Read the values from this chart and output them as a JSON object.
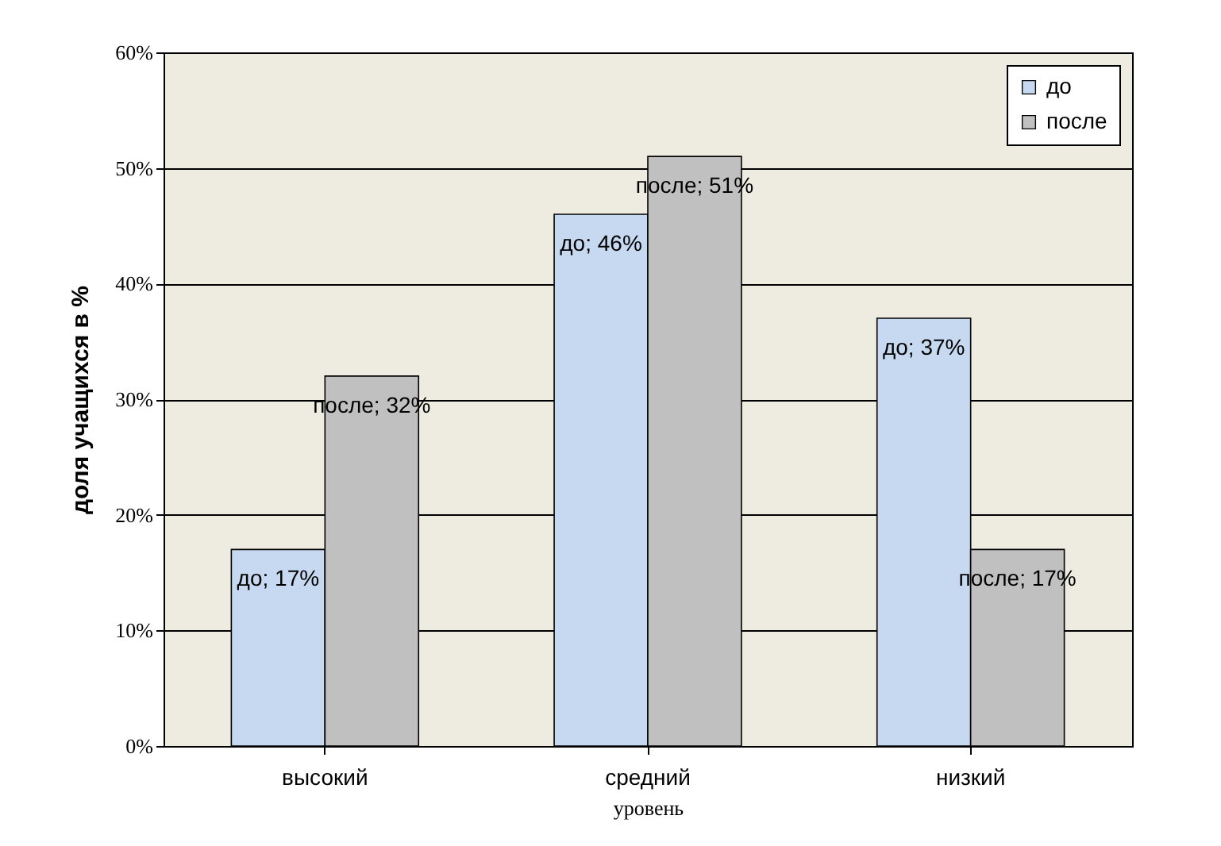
{
  "chart_data": {
    "type": "bar",
    "xlabel": "уровень",
    "ylabel": "доля учащихся в %",
    "categories": [
      "высокий",
      "средний",
      "низкий"
    ],
    "series": [
      {
        "name": "до",
        "color": "#c6d9f1",
        "values": [
          17,
          46,
          37
        ],
        "value_labels": [
          "до; 17%",
          "до; 46%",
          "до; 37%"
        ]
      },
      {
        "name": "после",
        "color": "#c0c0c0",
        "values": [
          32,
          51,
          17
        ],
        "value_labels": [
          "после; 32%",
          "после; 51%",
          "после; 17%"
        ]
      }
    ],
    "ylim": [
      0,
      60
    ],
    "yticks": [
      {
        "value": 0,
        "label": "0%"
      },
      {
        "value": 10,
        "label": "10%"
      },
      {
        "value": 20,
        "label": "20%"
      },
      {
        "value": 30,
        "label": "30%"
      },
      {
        "value": 40,
        "label": "40%"
      },
      {
        "value": 50,
        "label": "50%"
      },
      {
        "value": 60,
        "label": "60%"
      }
    ],
    "grid": "y",
    "legend": "top right"
  }
}
